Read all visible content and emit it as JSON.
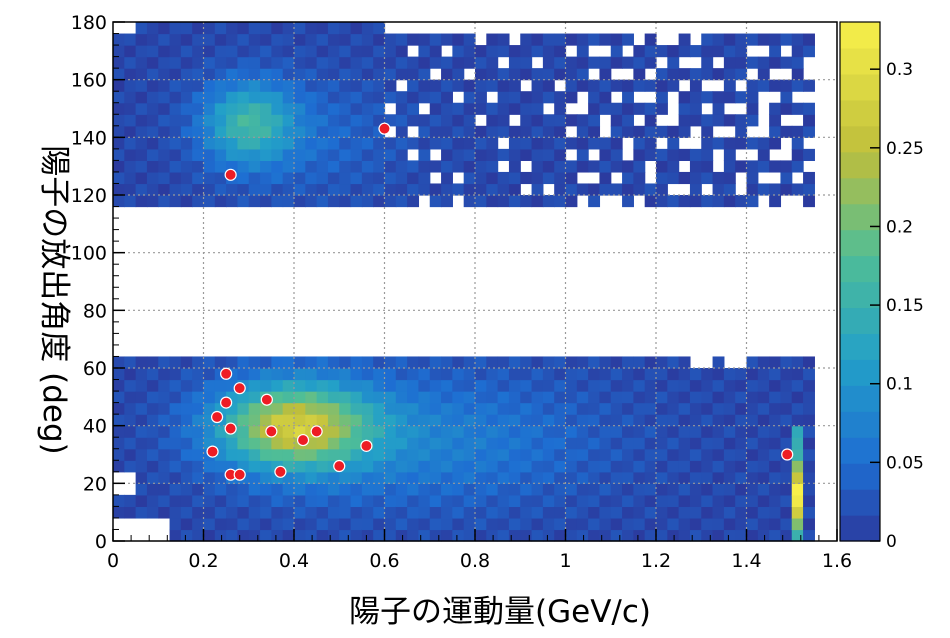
{
  "chart_data": {
    "type": "heatmap",
    "title": "",
    "xlabel": "陽子の運動量(GeV/c)",
    "ylabel": "陽子の放出角度 (deg)",
    "xlim": [
      0,
      1.6
    ],
    "ylim": [
      0,
      180
    ],
    "x_ticks": [
      "0",
      "0.2",
      "0.4",
      "0.6",
      "0.8",
      "1",
      "1.2",
      "1.4",
      "1.6"
    ],
    "y_ticks": [
      "0",
      "20",
      "40",
      "60",
      "80",
      "100",
      "120",
      "140",
      "160",
      "180"
    ],
    "colorbar": {
      "range": [
        0,
        0.33
      ],
      "ticks": [
        "0",
        "0.05",
        "0.1",
        "0.15",
        "0.2",
        "0.25",
        "0.3"
      ]
    },
    "grid": true,
    "colors": {
      "low": "#2b3a9e",
      "mid": "#3fb7b0",
      "high": "#f8f04a"
    },
    "points": [
      {
        "x": 0.26,
        "y": 127
      },
      {
        "x": 0.6,
        "y": 143
      },
      {
        "x": 0.25,
        "y": 58
      },
      {
        "x": 0.28,
        "y": 53
      },
      {
        "x": 0.25,
        "y": 48
      },
      {
        "x": 0.34,
        "y": 49
      },
      {
        "x": 0.23,
        "y": 43
      },
      {
        "x": 0.26,
        "y": 39
      },
      {
        "x": 0.35,
        "y": 38
      },
      {
        "x": 0.42,
        "y": 35
      },
      {
        "x": 0.45,
        "y": 38
      },
      {
        "x": 0.56,
        "y": 33
      },
      {
        "x": 0.22,
        "y": 31
      },
      {
        "x": 0.5,
        "y": 26
      },
      {
        "x": 0.26,
        "y": 23
      },
      {
        "x": 0.28,
        "y": 23
      },
      {
        "x": 0.37,
        "y": 24
      },
      {
        "x": 1.49,
        "y": 30
      }
    ]
  }
}
